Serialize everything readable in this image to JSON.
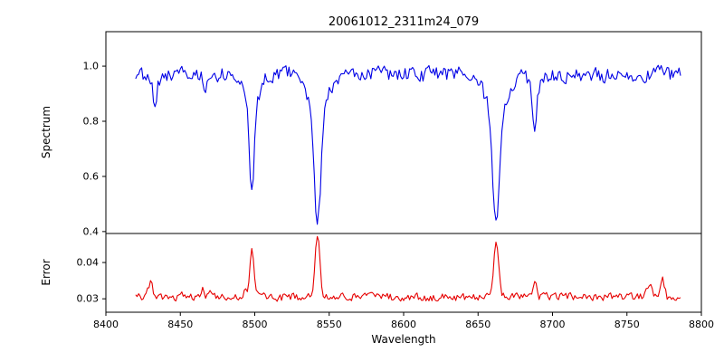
{
  "figure": {
    "title": "20061012_2311m24_079",
    "xlabel": "Wavelength",
    "background_color": "#ffffff",
    "axes_color": "#000000"
  },
  "chart_data": [
    {
      "type": "line",
      "name": "spectrum",
      "title": "20061012_2311m24_079",
      "ylabel": "Spectrum",
      "line_color": "#0000e6",
      "xlim": [
        8400,
        8800
      ],
      "ylim": [
        0.393,
        1.125
      ],
      "yticks": [
        0.4,
        0.6,
        0.8,
        1.0
      ],
      "ytick_labels": [
        "0.4",
        "0.6",
        "0.8",
        "1.0"
      ],
      "x_data_range": [
        8420,
        8786
      ],
      "x_step": 1,
      "continuum_level": 0.97,
      "noise_amplitude": 0.03,
      "noise_seed": 20061012,
      "absorption_lines": [
        {
          "center": 8433.0,
          "core_flux": 0.87,
          "depth": 0.1,
          "sigma": 1.2
        },
        {
          "center": 8467.0,
          "core_flux": 0.9,
          "depth": 0.07,
          "sigma": 1.0
        },
        {
          "center": 8498.0,
          "core_flux": 0.55,
          "depth": 0.42,
          "sigma": 1.6
        },
        {
          "center": 8542.1,
          "core_flux": 0.42,
          "depth": 0.55,
          "sigma": 2.2
        },
        {
          "center": 8662.1,
          "core_flux": 0.44,
          "depth": 0.53,
          "sigma": 2.2
        },
        {
          "center": 8688.0,
          "core_flux": 0.78,
          "depth": 0.19,
          "sigma": 1.3
        }
      ],
      "grid": false,
      "legend": null
    },
    {
      "type": "line",
      "name": "error",
      "ylabel": "Error",
      "line_color": "#e60000",
      "xlim": [
        8400,
        8800
      ],
      "ylim": [
        0.0263,
        0.048
      ],
      "yticks": [
        0.03,
        0.04
      ],
      "ytick_labels": [
        "0.03",
        "0.04"
      ],
      "xticks": [
        8400,
        8450,
        8500,
        8550,
        8600,
        8650,
        8700,
        8750,
        8800
      ],
      "xtick_labels": [
        "8400",
        "8450",
        "8500",
        "8550",
        "8600",
        "8650",
        "8700",
        "8750",
        "8800"
      ],
      "x_data_range": [
        8420,
        8786
      ],
      "x_step": 1,
      "baseline": 0.0305,
      "noise_amplitude": 0.0012,
      "noise_seed": 79,
      "error_spikes": [
        {
          "center": 8430.0,
          "peak_value": 0.034,
          "height": 0.0035,
          "sigma": 1.5
        },
        {
          "center": 8450.0,
          "peak_value": 0.032,
          "height": 0.0015,
          "sigma": 1.2
        },
        {
          "center": 8465.0,
          "peak_value": 0.0325,
          "height": 0.0022,
          "sigma": 1.0
        },
        {
          "center": 8470.0,
          "peak_value": 0.032,
          "height": 0.0018,
          "sigma": 1.0
        },
        {
          "center": 8494.0,
          "peak_value": 0.0325,
          "height": 0.002,
          "sigma": 1.0
        },
        {
          "center": 8498.0,
          "peak_value": 0.043,
          "height": 0.013,
          "sigma": 1.3
        },
        {
          "center": 8542.1,
          "peak_value": 0.0475,
          "height": 0.017,
          "sigma": 1.6
        },
        {
          "center": 8662.1,
          "peak_value": 0.046,
          "height": 0.0155,
          "sigma": 1.6
        },
        {
          "center": 8688.0,
          "peak_value": 0.0345,
          "height": 0.0045,
          "sigma": 1.1
        },
        {
          "center": 8765.0,
          "peak_value": 0.0345,
          "height": 0.004,
          "sigma": 1.4
        },
        {
          "center": 8774.0,
          "peak_value": 0.0355,
          "height": 0.005,
          "sigma": 1.2
        }
      ],
      "grid": false,
      "legend": null
    }
  ]
}
